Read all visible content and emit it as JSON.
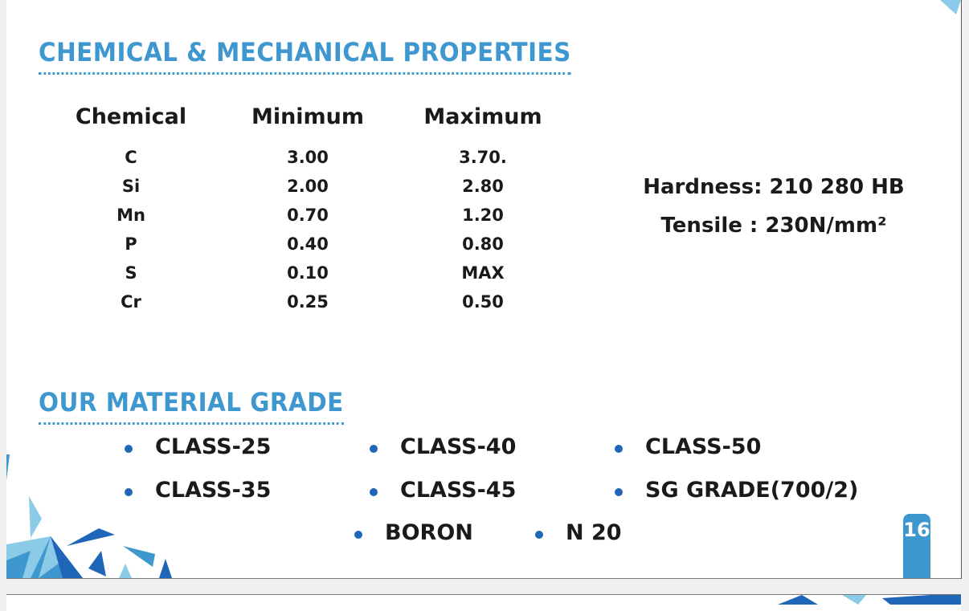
{
  "headings": {
    "properties": "CHEMICAL & MECHANICAL PROPERTIES",
    "grade": "OUR MATERIAL GRADE"
  },
  "table": {
    "headers": [
      "Chemical",
      "Minimum",
      "Maximum"
    ],
    "rows": [
      [
        "C",
        "3.00",
        "3.70."
      ],
      [
        "Si",
        "2.00",
        "2.80"
      ],
      [
        "Mn",
        "0.70",
        "1.20"
      ],
      [
        "P",
        "0.40",
        "0.80"
      ],
      [
        "S",
        "0.10",
        "MAX"
      ],
      [
        "Cr",
        "0.25",
        "0.50"
      ]
    ]
  },
  "mechanical": {
    "hardness": "Hardness: 210 280 HB",
    "tensile": "Tensile : 230N/mm²"
  },
  "grades": [
    "CLASS-25",
    "CLASS-40",
    "CLASS-50",
    "CLASS-35",
    "CLASS-45",
    "SG GRADE(700/2)",
    "BORON",
    "N 20"
  ],
  "page_number": "16",
  "colors": {
    "accent": "#3f97cf",
    "bullet": "#1f66b8",
    "dark_blue": "#1f66b8",
    "light_blue": "#8ccbe8"
  }
}
